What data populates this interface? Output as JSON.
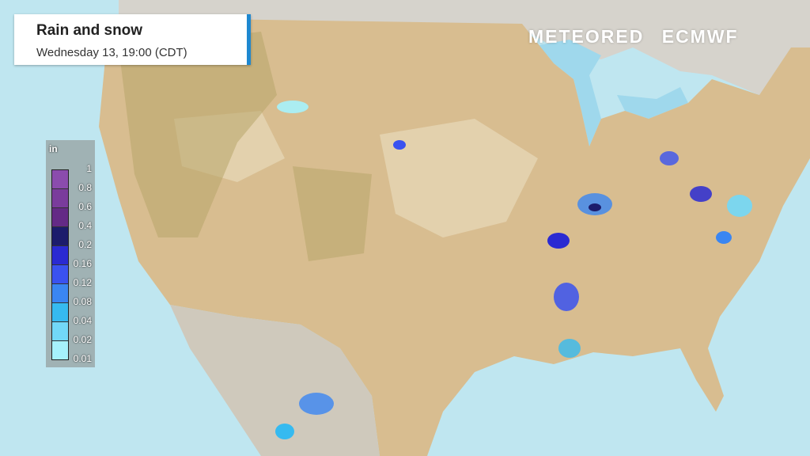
{
  "header": {
    "title": "Rain and snow",
    "subtitle": "Wednesday 13, 19:00 (CDT)"
  },
  "legend": {
    "unit": "in",
    "labels": [
      "1",
      "0.8",
      "0.6",
      "0.4",
      "0.2",
      "0.16",
      "0.12",
      "0.08",
      "0.04",
      "0.02",
      "0.01"
    ],
    "colors": [
      "#8b4cad",
      "#7a3c9c",
      "#642a86",
      "#1c1c6c",
      "#2a2ad2",
      "#3a52f0",
      "#3a86f2",
      "#36baf0",
      "#72d8f8",
      "#a6f2fc"
    ]
  },
  "branding": {
    "meteored": "METEORED",
    "ecmwf": "ECMWF"
  },
  "colors": {
    "ocean": "#bfe6f0",
    "land": "#d8bd90",
    "canada": "#d4d0c8",
    "accent": "#1e88d0"
  }
}
